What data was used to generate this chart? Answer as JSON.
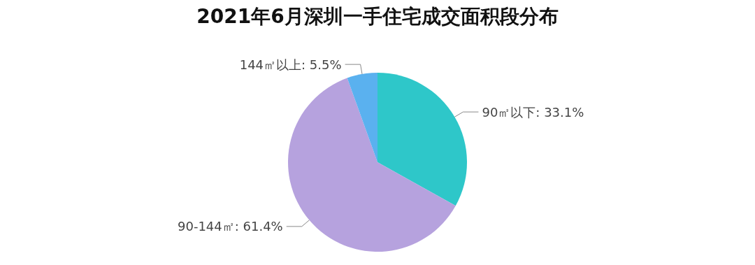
{
  "chart_data": {
    "type": "pie",
    "title": "2021年6月深圳一手住宅成交面积段分布",
    "categories": [
      "90㎡以下",
      "90-144㎡",
      "144㎡以上"
    ],
    "values": [
      33.1,
      61.4,
      5.5
    ],
    "value_labels": [
      "33.1%",
      "61.4%",
      "5.5%"
    ],
    "colors": [
      "#2ec7c9",
      "#b6a2de",
      "#5ab1ef"
    ],
    "legend": false
  }
}
